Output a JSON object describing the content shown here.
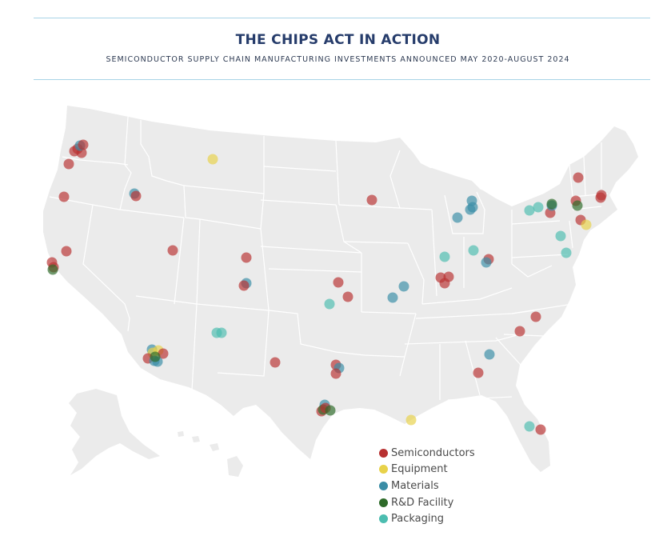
{
  "header": {
    "title": "THE CHIPS ACT IN ACTION",
    "subtitle": "SEMICONDUCTOR SUPPLY CHAIN MANUFACTURING INVESTMENTS ANNOUNCED MAY 2020-AUGUST 2024"
  },
  "legend": {
    "items": [
      {
        "label": "Semiconductors",
        "color": "#b83232"
      },
      {
        "label": "Equipment",
        "color": "#e8d24a"
      },
      {
        "label": "Materials",
        "color": "#3a8da6"
      },
      {
        "label": "R&D Facility",
        "color": "#2e6b2a"
      },
      {
        "label": "Packaging",
        "color": "#4cbdb0"
      }
    ]
  },
  "colors": {
    "land": "#ebebeb",
    "state_border": "#ffffff",
    "semiconductors": "#b83232",
    "equipment": "#e8d24a",
    "materials": "#3a8da6",
    "rd_facility": "#2e6b2a",
    "packaging": "#4cbdb0"
  }
}
